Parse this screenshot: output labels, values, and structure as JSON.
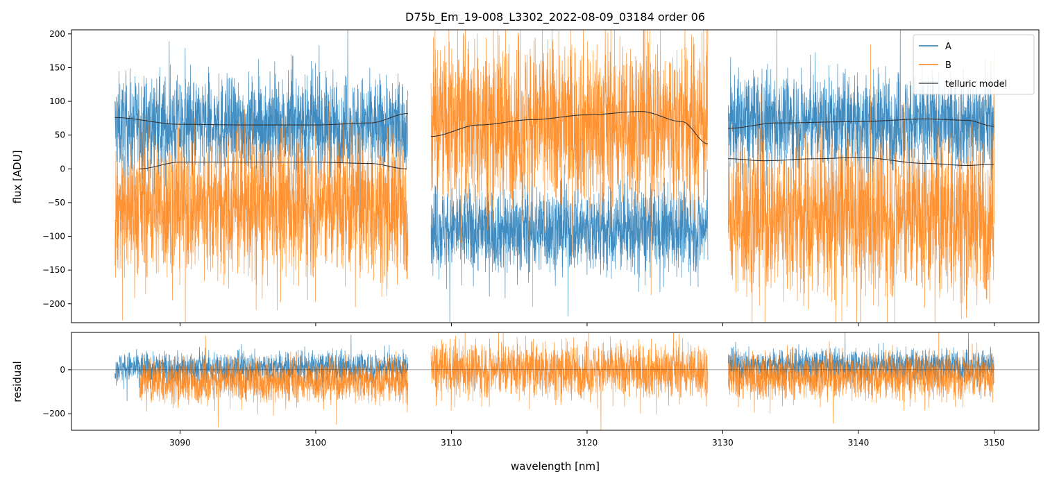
{
  "chart_data": [
    {
      "type": "line",
      "panel": "top",
      "title": "D75b_Em_19-008_L3302_2022-08-09_03184  order 06",
      "xlabel": "",
      "ylabel": "flux [ADU]",
      "xlim": [
        3082,
        3153.3
      ],
      "ylim": [
        -228,
        206
      ],
      "xticks": [
        3090,
        3100,
        3110,
        3120,
        3130,
        3140,
        3150
      ],
      "yticks": [
        -200,
        -150,
        -100,
        -50,
        0,
        50,
        100,
        150,
        200
      ],
      "ytick_labels": [
        "−200",
        "−150",
        "−100",
        "−50",
        "0",
        "50",
        "100",
        "150",
        "200"
      ],
      "legend": {
        "location": "top-right",
        "entries": [
          "A",
          "B",
          "telluric model"
        ]
      },
      "colors": {
        "A": "#1f77b4",
        "B": "#ff7f0e",
        "model": "#333333"
      },
      "segments": [
        {
          "x_range": [
            3085.2,
            3106.8
          ],
          "A": {
            "center": 65,
            "spread": 50
          },
          "B": {
            "center": -55,
            "spread": 75
          },
          "model_A": {
            "x": [
              3085.2,
              3090,
              3095,
              3100,
              3104,
              3106.8
            ],
            "y": [
              76,
              66,
              65,
              65,
              68,
              82
            ]
          },
          "model_B": {
            "x": [
              3087,
              3090,
              3095,
              3100,
              3104,
              3106.7
            ],
            "y": [
              0,
              10,
              10,
              10,
              8,
              0
            ]
          }
        },
        {
          "x_range": [
            3108.5,
            3128.9
          ],
          "A": {
            "center": -90,
            "spread": 45
          },
          "B": {
            "center": 70,
            "spread": 90
          },
          "model_B": {
            "x": [
              3108.5,
              3112,
              3116,
              3120,
              3124,
              3127,
              3128.9
            ],
            "y": [
              48,
              65,
              73,
              80,
              85,
              70,
              37
            ]
          }
        },
        {
          "x_range": [
            3130.4,
            3150
          ],
          "A": {
            "center": 70,
            "spread": 50
          },
          "B": {
            "center": -70,
            "spread": 85
          },
          "model_A": {
            "x": [
              3130.4,
              3134,
              3140,
              3145,
              3148,
              3150
            ],
            "y": [
              60,
              68,
              70,
              74,
              72,
              63
            ]
          },
          "model_B": {
            "x": [
              3130.4,
              3133,
              3137,
              3140,
              3145,
              3148,
              3150
            ],
            "y": [
              15,
              12,
              15,
              17,
              8,
              5,
              7
            ]
          }
        }
      ]
    },
    {
      "type": "line",
      "panel": "bottom",
      "title": "",
      "xlabel": "wavelength [nm]",
      "ylabel": "residual",
      "xlim": [
        3082,
        3153.3
      ],
      "ylim": [
        -275,
        170
      ],
      "xticks": [
        3090,
        3100,
        3110,
        3120,
        3130,
        3140,
        3150
      ],
      "xtick_labels": [
        "3090",
        "3100",
        "3110",
        "3120",
        "3130",
        "3140",
        "3150"
      ],
      "yticks": [
        -200,
        0
      ],
      "ytick_labels": [
        "−200",
        "0"
      ],
      "zero_line": 0,
      "segments": [
        {
          "x_range": [
            3085.2,
            3106.8
          ],
          "A": {
            "center": 10,
            "spread": 50
          },
          "B": {
            "center": -50,
            "spread": 70
          },
          "B_start": 3087
        },
        {
          "x_range": [
            3108.5,
            3128.9
          ],
          "A": {
            "center": 0,
            "spread": 0
          },
          "B": {
            "center": 0,
            "spread": 90
          }
        },
        {
          "x_range": [
            3130.4,
            3150
          ],
          "A": {
            "center": 20,
            "spread": 50
          },
          "B": {
            "center": -30,
            "spread": 75
          }
        }
      ]
    }
  ]
}
